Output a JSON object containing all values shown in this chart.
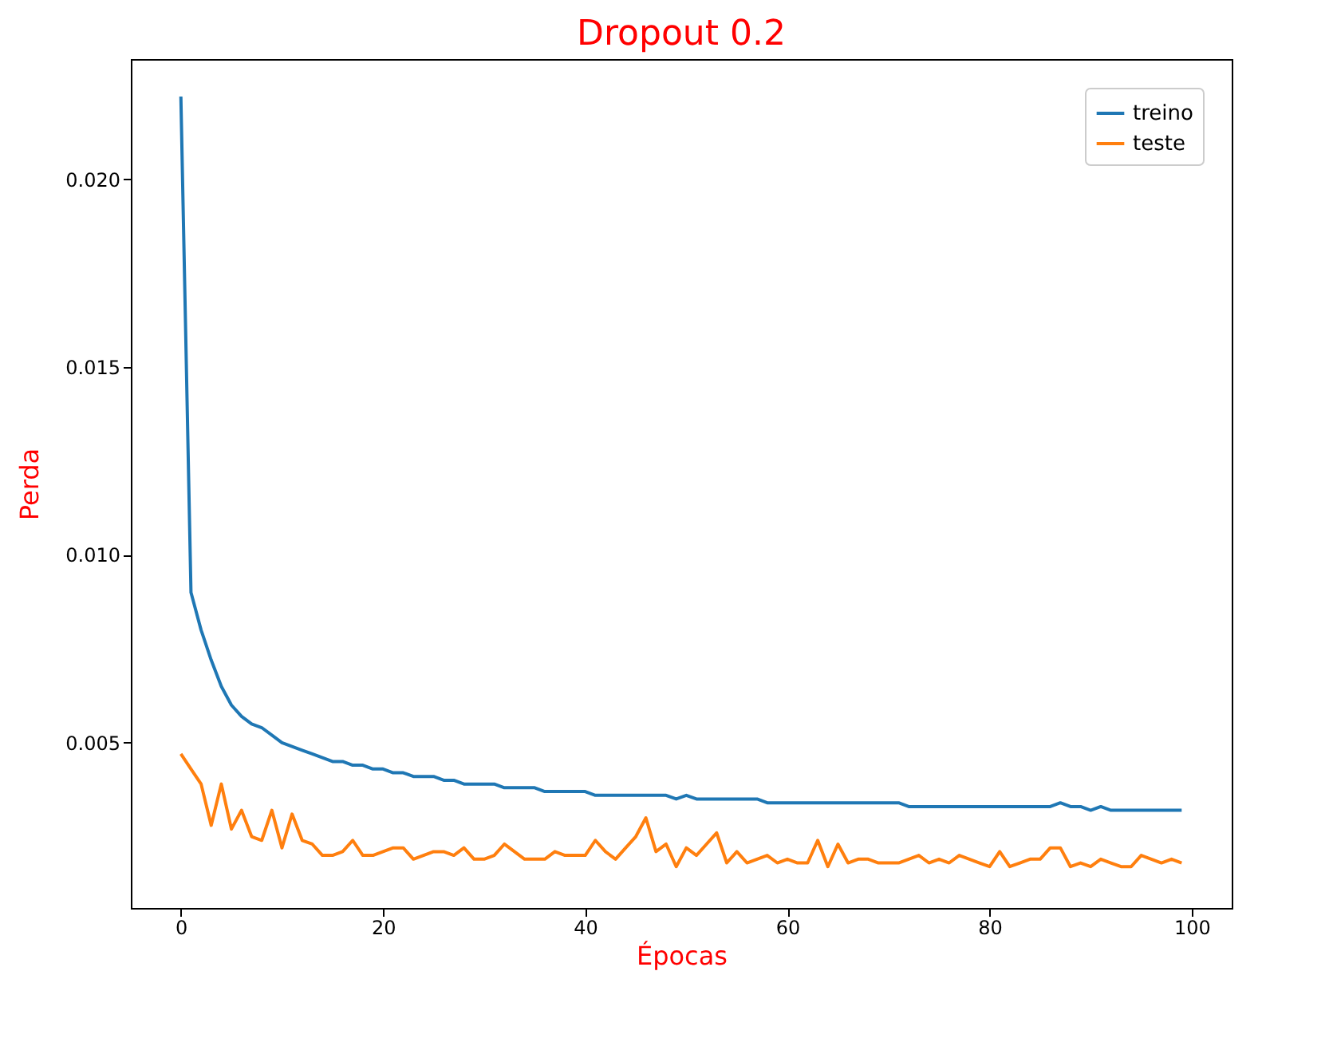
{
  "chart_data": {
    "type": "line",
    "title": "Dropout 0.2",
    "xlabel": "Épocas",
    "ylabel": "Perda",
    "x": [
      0,
      1,
      2,
      3,
      4,
      5,
      6,
      7,
      8,
      9,
      10,
      11,
      12,
      13,
      14,
      15,
      16,
      17,
      18,
      19,
      20,
      21,
      22,
      23,
      24,
      25,
      26,
      27,
      28,
      29,
      30,
      31,
      32,
      33,
      34,
      35,
      36,
      37,
      38,
      39,
      40,
      41,
      42,
      43,
      44,
      45,
      46,
      47,
      48,
      49,
      50,
      51,
      52,
      53,
      54,
      55,
      56,
      57,
      58,
      59,
      60,
      61,
      62,
      63,
      64,
      65,
      66,
      67,
      68,
      69,
      70,
      71,
      72,
      73,
      74,
      75,
      76,
      77,
      78,
      79,
      80,
      81,
      82,
      83,
      84,
      85,
      86,
      87,
      88,
      89,
      90,
      91,
      92,
      93,
      94,
      95,
      96,
      97,
      98,
      99
    ],
    "series": [
      {
        "name": "treino",
        "color": "#1f77b4",
        "values": [
          0.0222,
          0.009,
          0.008,
          0.0072,
          0.0065,
          0.006,
          0.0057,
          0.0055,
          0.0054,
          0.0052,
          0.005,
          0.0049,
          0.0048,
          0.0047,
          0.0046,
          0.0045,
          0.0045,
          0.0044,
          0.0044,
          0.0043,
          0.0043,
          0.0042,
          0.0042,
          0.0041,
          0.0041,
          0.0041,
          0.004,
          0.004,
          0.0039,
          0.0039,
          0.0039,
          0.0039,
          0.0038,
          0.0038,
          0.0038,
          0.0038,
          0.0037,
          0.0037,
          0.0037,
          0.0037,
          0.0037,
          0.0036,
          0.0036,
          0.0036,
          0.0036,
          0.0036,
          0.0036,
          0.0036,
          0.0036,
          0.0035,
          0.0036,
          0.0035,
          0.0035,
          0.0035,
          0.0035,
          0.0035,
          0.0035,
          0.0035,
          0.0034,
          0.0034,
          0.0034,
          0.0034,
          0.0034,
          0.0034,
          0.0034,
          0.0034,
          0.0034,
          0.0034,
          0.0034,
          0.0034,
          0.0034,
          0.0034,
          0.0033,
          0.0033,
          0.0033,
          0.0033,
          0.0033,
          0.0033,
          0.0033,
          0.0033,
          0.0033,
          0.0033,
          0.0033,
          0.0033,
          0.0033,
          0.0033,
          0.0033,
          0.0034,
          0.0033,
          0.0033,
          0.0032,
          0.0033,
          0.0032,
          0.0032,
          0.0032,
          0.0032,
          0.0032,
          0.0032,
          0.0032,
          0.0032
        ]
      },
      {
        "name": "teste",
        "color": "#ff7f0e",
        "values": [
          0.0047,
          0.0043,
          0.0039,
          0.0028,
          0.0039,
          0.0027,
          0.0032,
          0.0025,
          0.0024,
          0.0032,
          0.0022,
          0.0031,
          0.0024,
          0.0023,
          0.002,
          0.002,
          0.0021,
          0.0024,
          0.002,
          0.002,
          0.0021,
          0.0022,
          0.0022,
          0.0019,
          0.002,
          0.0021,
          0.0021,
          0.002,
          0.0022,
          0.0019,
          0.0019,
          0.002,
          0.0023,
          0.0021,
          0.0019,
          0.0019,
          0.0019,
          0.0021,
          0.002,
          0.002,
          0.002,
          0.0024,
          0.0021,
          0.0019,
          0.0022,
          0.0025,
          0.003,
          0.0021,
          0.0023,
          0.0017,
          0.0022,
          0.002,
          0.0023,
          0.0026,
          0.0018,
          0.0021,
          0.0018,
          0.0019,
          0.002,
          0.0018,
          0.0019,
          0.0018,
          0.0018,
          0.0024,
          0.0017,
          0.0023,
          0.0018,
          0.0019,
          0.0019,
          0.0018,
          0.0018,
          0.0018,
          0.0019,
          0.002,
          0.0018,
          0.0019,
          0.0018,
          0.002,
          0.0019,
          0.0018,
          0.0017,
          0.0021,
          0.0017,
          0.0018,
          0.0019,
          0.0019,
          0.0022,
          0.0022,
          0.0017,
          0.0018,
          0.0017,
          0.0019,
          0.0018,
          0.0017,
          0.0017,
          0.002,
          0.0019,
          0.0018,
          0.0019,
          0.0018
        ]
      }
    ],
    "xlim": [
      -4.95,
      103.95
    ],
    "ylim": [
      0.0006,
      0.0232
    ],
    "xticks": [
      0,
      20,
      40,
      60,
      80,
      100
    ],
    "yticks": [
      0.005,
      {
        "value": 0.01,
        "label": "0.010"
      },
      0.015,
      {
        "value": 0.02,
        "label": "0.020"
      }
    ],
    "grid": false,
    "legend": "top right",
    "marker": "none",
    "line_style": "solid"
  }
}
